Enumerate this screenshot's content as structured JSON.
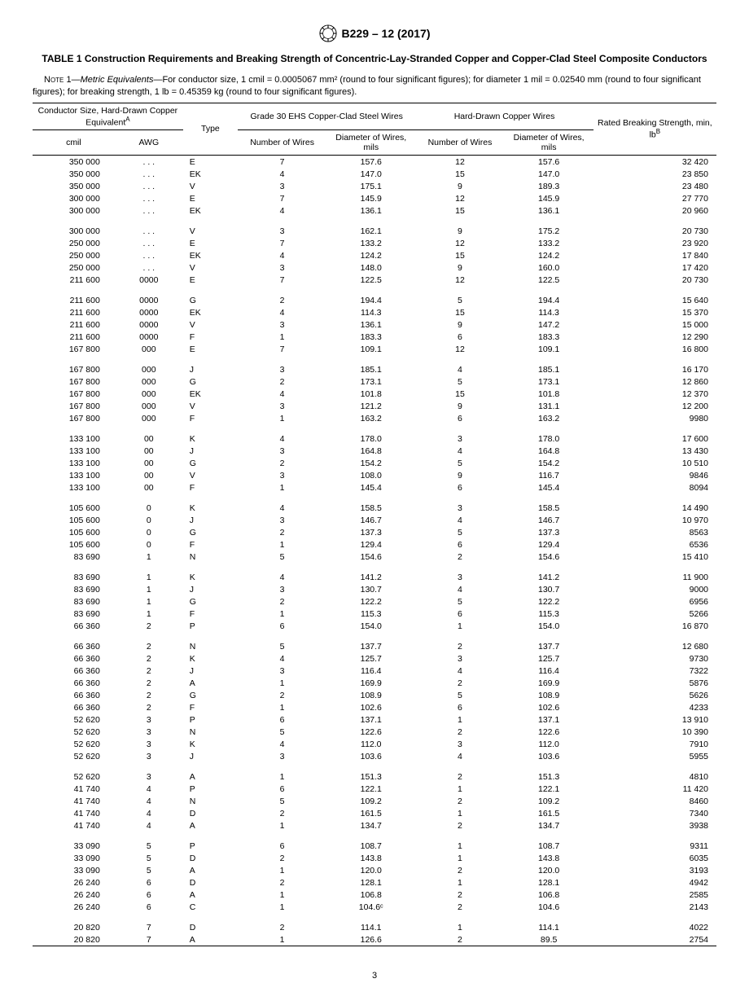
{
  "doc_id": "B229 – 12 (2017)",
  "table_title": "TABLE 1 Construction Requirements and Breaking Strength of Concentric-Lay-Stranded Copper and Copper-Clad Steel Composite Conductors",
  "note_label": "Note 1—",
  "note_em": "Metric Equivalents",
  "note_rest": "—For conductor size, 1 cmil = 0.0005067 mm² (round to four significant figures); for diameter 1 mil = 0.02540 mm (round to four significant figures); for breaking strength, 1 lb = 0.45359 kg (round to four significant figures).",
  "headers": {
    "conductor_size": "Conductor Size, Hard-Drawn Copper Equivalent",
    "conductor_size_sup": "A",
    "cmil": "cmil",
    "awg": "AWG",
    "type": "Type",
    "grade30": "Grade 30 EHS Copper-Clad Steel Wires",
    "hdcopper": "Hard-Drawn Copper Wires",
    "num_wires": "Number of Wires",
    "diam_wires": "Diameter of Wires, mils",
    "rated": "Rated Breaking Strength, min, lb",
    "rated_sup": "B"
  },
  "page_number": "3",
  "groups": [
    [
      {
        "cmil": "350 000",
        "awg": ". . .",
        "type": "E",
        "n1": "7",
        "d1": "157.6",
        "n2": "12",
        "d2": "157.6",
        "s": "32 420"
      },
      {
        "cmil": "350 000",
        "awg": ". . .",
        "type": "EK",
        "n1": "4",
        "d1": "147.0",
        "n2": "15",
        "d2": "147.0",
        "s": "23 850"
      },
      {
        "cmil": "350 000",
        "awg": ". . .",
        "type": "V",
        "n1": "3",
        "d1": "175.1",
        "n2": "9",
        "d2": "189.3",
        "s": "23 480"
      },
      {
        "cmil": "300 000",
        "awg": ". . .",
        "type": "E",
        "n1": "7",
        "d1": "145.9",
        "n2": "12",
        "d2": "145.9",
        "s": "27 770"
      },
      {
        "cmil": "300 000",
        "awg": ". . .",
        "type": "EK",
        "n1": "4",
        "d1": "136.1",
        "n2": "15",
        "d2": "136.1",
        "s": "20 960"
      }
    ],
    [
      {
        "cmil": "300 000",
        "awg": ". . .",
        "type": "V",
        "n1": "3",
        "d1": "162.1",
        "n2": "9",
        "d2": "175.2",
        "s": "20 730"
      },
      {
        "cmil": "250 000",
        "awg": ". . .",
        "type": "E",
        "n1": "7",
        "d1": "133.2",
        "n2": "12",
        "d2": "133.2",
        "s": "23 920"
      },
      {
        "cmil": "250 000",
        "awg": ". . .",
        "type": "EK",
        "n1": "4",
        "d1": "124.2",
        "n2": "15",
        "d2": "124.2",
        "s": "17 840"
      },
      {
        "cmil": "250 000",
        "awg": ". . .",
        "type": "V",
        "n1": "3",
        "d1": "148.0",
        "n2": "9",
        "d2": "160.0",
        "s": "17 420"
      },
      {
        "cmil": "211 600",
        "awg": "0000",
        "type": "E",
        "n1": "7",
        "d1": "122.5",
        "n2": "12",
        "d2": "122.5",
        "s": "20 730"
      }
    ],
    [
      {
        "cmil": "211 600",
        "awg": "0000",
        "type": "G",
        "n1": "2",
        "d1": "194.4",
        "n2": "5",
        "d2": "194.4",
        "s": "15 640"
      },
      {
        "cmil": "211 600",
        "awg": "0000",
        "type": "EK",
        "n1": "4",
        "d1": "114.3",
        "n2": "15",
        "d2": "114.3",
        "s": "15 370"
      },
      {
        "cmil": "211 600",
        "awg": "0000",
        "type": "V",
        "n1": "3",
        "d1": "136.1",
        "n2": "9",
        "d2": "147.2",
        "s": "15 000"
      },
      {
        "cmil": "211 600",
        "awg": "0000",
        "type": "F",
        "n1": "1",
        "d1": "183.3",
        "n2": "6",
        "d2": "183.3",
        "s": "12 290"
      },
      {
        "cmil": "167 800",
        "awg": "000",
        "type": "E",
        "n1": "7",
        "d1": "109.1",
        "n2": "12",
        "d2": "109.1",
        "s": "16 800"
      }
    ],
    [
      {
        "cmil": "167 800",
        "awg": "000",
        "type": "J",
        "n1": "3",
        "d1": "185.1",
        "n2": "4",
        "d2": "185.1",
        "s": "16 170"
      },
      {
        "cmil": "167 800",
        "awg": "000",
        "type": "G",
        "n1": "2",
        "d1": "173.1",
        "n2": "5",
        "d2": "173.1",
        "s": "12 860"
      },
      {
        "cmil": "167 800",
        "awg": "000",
        "type": "EK",
        "n1": "4",
        "d1": "101.8",
        "n2": "15",
        "d2": "101.8",
        "s": "12 370"
      },
      {
        "cmil": "167 800",
        "awg": "000",
        "type": "V",
        "n1": "3",
        "d1": "121.2",
        "n2": "9",
        "d2": "131.1",
        "s": "12 200"
      },
      {
        "cmil": "167 800",
        "awg": "000",
        "type": "F",
        "n1": "1",
        "d1": "163.2",
        "n2": "6",
        "d2": "163.2",
        "s": "9980"
      }
    ],
    [
      {
        "cmil": "133 100",
        "awg": "00",
        "type": "K",
        "n1": "4",
        "d1": "178.0",
        "n2": "3",
        "d2": "178.0",
        "s": "17 600"
      },
      {
        "cmil": "133 100",
        "awg": "00",
        "type": "J",
        "n1": "3",
        "d1": "164.8",
        "n2": "4",
        "d2": "164.8",
        "s": "13 430"
      },
      {
        "cmil": "133 100",
        "awg": "00",
        "type": "G",
        "n1": "2",
        "d1": "154.2",
        "n2": "5",
        "d2": "154.2",
        "s": "10 510"
      },
      {
        "cmil": "133 100",
        "awg": "00",
        "type": "V",
        "n1": "3",
        "d1": "108.0",
        "n2": "9",
        "d2": "116.7",
        "s": "9846"
      },
      {
        "cmil": "133 100",
        "awg": "00",
        "type": "F",
        "n1": "1",
        "d1": "145.4",
        "n2": "6",
        "d2": "145.4",
        "s": "8094"
      }
    ],
    [
      {
        "cmil": "105 600",
        "awg": "0",
        "type": "K",
        "n1": "4",
        "d1": "158.5",
        "n2": "3",
        "d2": "158.5",
        "s": "14 490"
      },
      {
        "cmil": "105 600",
        "awg": "0",
        "type": "J",
        "n1": "3",
        "d1": "146.7",
        "n2": "4",
        "d2": "146.7",
        "s": "10 970"
      },
      {
        "cmil": "105 600",
        "awg": "0",
        "type": "G",
        "n1": "2",
        "d1": "137.3",
        "n2": "5",
        "d2": "137.3",
        "s": "8563"
      },
      {
        "cmil": "105 600",
        "awg": "0",
        "type": "F",
        "n1": "1",
        "d1": "129.4",
        "n2": "6",
        "d2": "129.4",
        "s": "6536"
      },
      {
        "cmil": "83 690",
        "awg": "1",
        "type": "N",
        "n1": "5",
        "d1": "154.6",
        "n2": "2",
        "d2": "154.6",
        "s": "15 410"
      }
    ],
    [
      {
        "cmil": "83 690",
        "awg": "1",
        "type": "K",
        "n1": "4",
        "d1": "141.2",
        "n2": "3",
        "d2": "141.2",
        "s": "11 900"
      },
      {
        "cmil": "83 690",
        "awg": "1",
        "type": "J",
        "n1": "3",
        "d1": "130.7",
        "n2": "4",
        "d2": "130.7",
        "s": "9000"
      },
      {
        "cmil": "83 690",
        "awg": "1",
        "type": "G",
        "n1": "2",
        "d1": "122.2",
        "n2": "5",
        "d2": "122.2",
        "s": "6956"
      },
      {
        "cmil": "83 690",
        "awg": "1",
        "type": "F",
        "n1": "1",
        "d1": "115.3",
        "n2": "6",
        "d2": "115.3",
        "s": "5266"
      },
      {
        "cmil": "66 360",
        "awg": "2",
        "type": "P",
        "n1": "6",
        "d1": "154.0",
        "n2": "1",
        "d2": "154.0",
        "s": "16 870"
      }
    ],
    [
      {
        "cmil": "66 360",
        "awg": "2",
        "type": "N",
        "n1": "5",
        "d1": "137.7",
        "n2": "2",
        "d2": "137.7",
        "s": "12 680"
      },
      {
        "cmil": "66 360",
        "awg": "2",
        "type": "K",
        "n1": "4",
        "d1": "125.7",
        "n2": "3",
        "d2": "125.7",
        "s": "9730"
      },
      {
        "cmil": "66 360",
        "awg": "2",
        "type": "J",
        "n1": "3",
        "d1": "116.4",
        "n2": "4",
        "d2": "116.4",
        "s": "7322"
      },
      {
        "cmil": "66 360",
        "awg": "2",
        "type": "A",
        "n1": "1",
        "d1": "169.9",
        "n2": "2",
        "d2": "169.9",
        "s": "5876"
      },
      {
        "cmil": "66 360",
        "awg": "2",
        "type": "G",
        "n1": "2",
        "d1": "108.9",
        "n2": "5",
        "d2": "108.9",
        "s": "5626"
      },
      {
        "cmil": "66 360",
        "awg": "2",
        "type": "F",
        "n1": "1",
        "d1": "102.6",
        "n2": "6",
        "d2": "102.6",
        "s": "4233"
      },
      {
        "cmil": "52 620",
        "awg": "3",
        "type": "P",
        "n1": "6",
        "d1": "137.1",
        "n2": "1",
        "d2": "137.1",
        "s": "13 910"
      },
      {
        "cmil": "52 620",
        "awg": "3",
        "type": "N",
        "n1": "5",
        "d1": "122.6",
        "n2": "2",
        "d2": "122.6",
        "s": "10 390"
      },
      {
        "cmil": "52 620",
        "awg": "3",
        "type": "K",
        "n1": "4",
        "d1": "112.0",
        "n2": "3",
        "d2": "112.0",
        "s": "7910"
      },
      {
        "cmil": "52 620",
        "awg": "3",
        "type": "J",
        "n1": "3",
        "d1": "103.6",
        "n2": "4",
        "d2": "103.6",
        "s": "5955"
      }
    ],
    [
      {
        "cmil": "52 620",
        "awg": "3",
        "type": "A",
        "n1": "1",
        "d1": "151.3",
        "n2": "2",
        "d2": "151.3",
        "s": "4810"
      },
      {
        "cmil": "41 740",
        "awg": "4",
        "type": "P",
        "n1": "6",
        "d1": "122.1",
        "n2": "1",
        "d2": "122.1",
        "s": "11 420"
      },
      {
        "cmil": "41 740",
        "awg": "4",
        "type": "N",
        "n1": "5",
        "d1": "109.2",
        "n2": "2",
        "d2": "109.2",
        "s": "8460"
      },
      {
        "cmil": "41 740",
        "awg": "4",
        "type": "D",
        "n1": "2",
        "d1": "161.5",
        "n2": "1",
        "d2": "161.5",
        "s": "7340"
      },
      {
        "cmil": "41 740",
        "awg": "4",
        "type": "A",
        "n1": "1",
        "d1": "134.7",
        "n2": "2",
        "d2": "134.7",
        "s": "3938"
      }
    ],
    [
      {
        "cmil": "33 090",
        "awg": "5",
        "type": "P",
        "n1": "6",
        "d1": "108.7",
        "n2": "1",
        "d2": "108.7",
        "s": "9311"
      },
      {
        "cmil": "33 090",
        "awg": "5",
        "type": "D",
        "n1": "2",
        "d1": "143.8",
        "n2": "1",
        "d2": "143.8",
        "s": "6035"
      },
      {
        "cmil": "33 090",
        "awg": "5",
        "type": "A",
        "n1": "1",
        "d1": "120.0",
        "n2": "2",
        "d2": "120.0",
        "s": "3193"
      },
      {
        "cmil": "26 240",
        "awg": "6",
        "type": "D",
        "n1": "2",
        "d1": "128.1",
        "n2": "1",
        "d2": "128.1",
        "s": "4942"
      },
      {
        "cmil": "26 240",
        "awg": "6",
        "type": "A",
        "n1": "1",
        "d1": "106.8",
        "n2": "2",
        "d2": "106.8",
        "s": "2585"
      },
      {
        "cmil": "26 240",
        "awg": "6",
        "type": "C",
        "n1": "1",
        "d1": "104.6ᶜ",
        "n2": "2",
        "d2": "104.6",
        "s": "2143"
      }
    ],
    [
      {
        "cmil": "20 820",
        "awg": "7",
        "type": "D",
        "n1": "2",
        "d1": "114.1",
        "n2": "1",
        "d2": "114.1",
        "s": "4022"
      },
      {
        "cmil": "20 820",
        "awg": "7",
        "type": "A",
        "n1": "1",
        "d1": "126.6",
        "n2": "2",
        "d2": "89.5",
        "s": "2754"
      }
    ]
  ]
}
